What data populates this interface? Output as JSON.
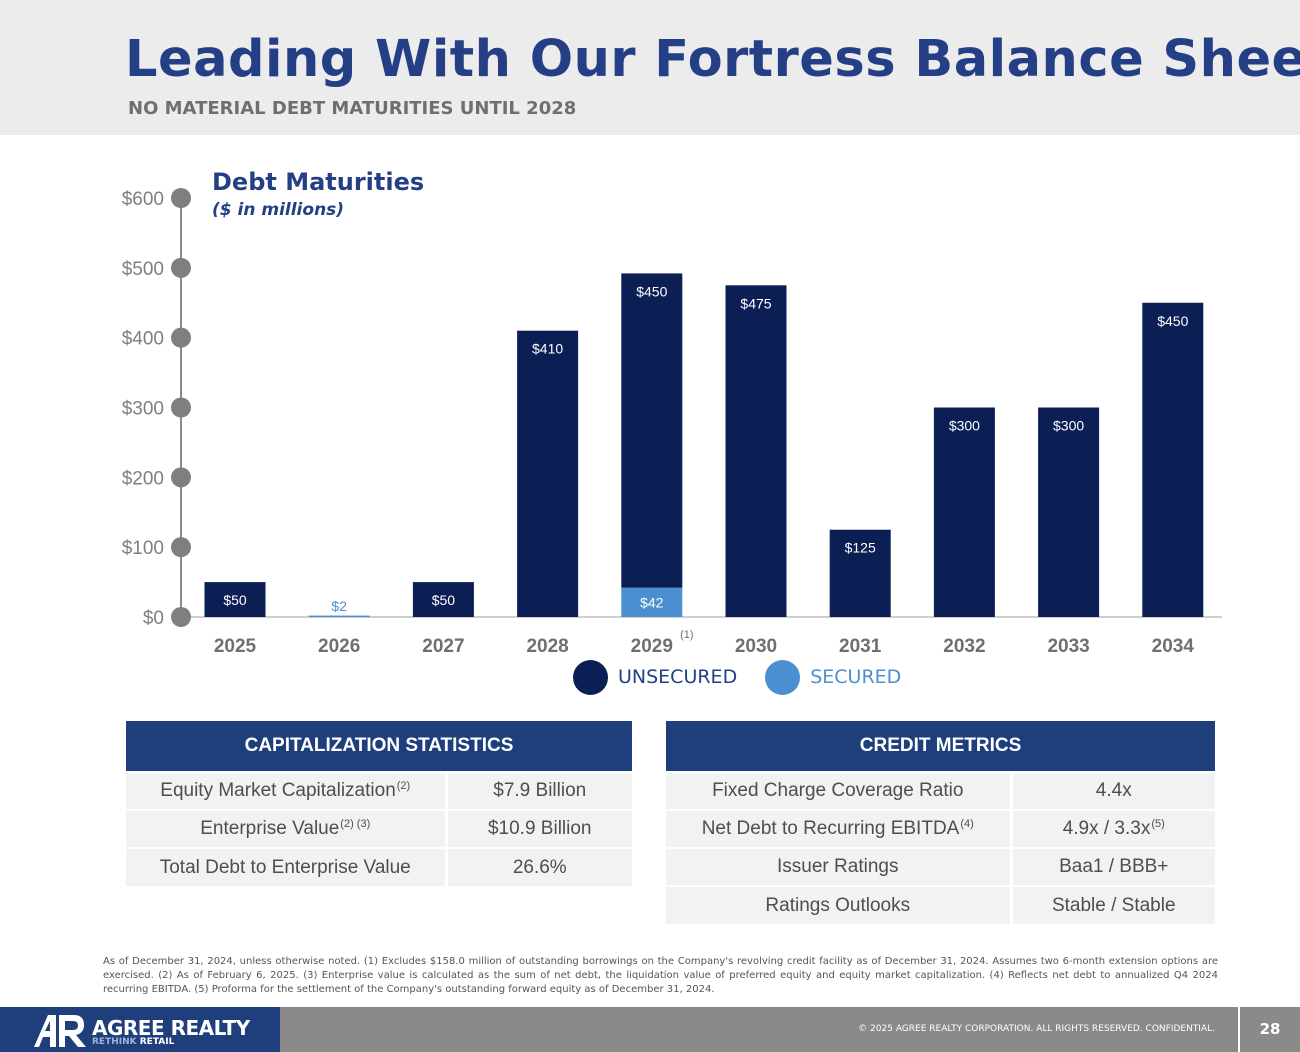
{
  "header": {
    "title": "Leading With Our Fortress Balance Sheet",
    "subtitle": "NO MATERIAL DEBT MATURITIES UNTIL 2028"
  },
  "chart_data": {
    "type": "bar",
    "stacked": true,
    "title": "Debt Maturities",
    "subtitle": "($ in millions)",
    "categories": [
      "2025",
      "2026",
      "2027",
      "2028",
      "2029",
      "2030",
      "2031",
      "2032",
      "2033",
      "2034"
    ],
    "category_notes": {
      "2029": "(1)"
    },
    "series": [
      {
        "name": "SECURED",
        "values": [
          0,
          2,
          0,
          0,
          42,
          0,
          0,
          0,
          0,
          0
        ],
        "color": "#4a90d0"
      },
      {
        "name": "UNSECURED",
        "values": [
          50,
          0,
          50,
          410,
          450,
          475,
          125,
          300,
          300,
          450
        ],
        "color": "#0c1f55"
      }
    ],
    "data_labels": {
      "UNSECURED": [
        "$50",
        "",
        "$50",
        "$410",
        "$450",
        "$475",
        "$125",
        "$300",
        "$300",
        "$450"
      ],
      "SECURED": [
        "",
        "$2",
        "",
        "",
        "$42",
        "",
        "",
        "",
        "",
        ""
      ]
    },
    "y_ticks": [
      0,
      100,
      200,
      300,
      400,
      500,
      600
    ],
    "y_tick_labels": [
      "$0",
      "$100",
      "$200",
      "$300",
      "$400",
      "$500",
      "$600"
    ],
    "ylim": [
      0,
      600
    ],
    "xlabel": "",
    "ylabel": "",
    "legend": "bottom-center",
    "grid": false
  },
  "legend": {
    "unsecured_label": "UNSECURED",
    "secured_label": "SECURED",
    "unsecured_color": "#0c1f55",
    "secured_color": "#4a90d0"
  },
  "capitalization": {
    "header": "CAPITALIZATION STATISTICS",
    "rows": [
      {
        "label": "Equity Market Capitalization",
        "note": "(2)",
        "value": "$7.9 Billion",
        "value_note": ""
      },
      {
        "label": "Enterprise Value",
        "note": "(2) (3)",
        "value": "$10.9 Billion",
        "value_note": ""
      },
      {
        "label": "Total Debt to Enterprise Value",
        "note": "",
        "value": "26.6%",
        "value_note": ""
      }
    ]
  },
  "credit": {
    "header": "CREDIT METRICS",
    "rows": [
      {
        "label": "Fixed Charge Coverage Ratio",
        "note": "",
        "value": "4.4x",
        "value_note": ""
      },
      {
        "label": "Net Debt to Recurring EBITDA",
        "note": "(4)",
        "value": "4.9x / 3.3x",
        "value_note": "(5)"
      },
      {
        "label": "Issuer Ratings",
        "note": "",
        "value": "Baa1 / BBB+",
        "value_note": ""
      },
      {
        "label": "Ratings Outlooks",
        "note": "",
        "value": "Stable / Stable",
        "value_note": ""
      }
    ]
  },
  "footnote": "As of December 31, 2024, unless otherwise noted. (1) Excludes $158.0 million of outstanding borrowings on the Company's revolving credit facility as of December 31, 2024. Assumes two 6-month extension options are exercised. (2) As of February 6, 2025. (3) Enterprise value is calculated as the sum of net debt, the liquidation value of preferred equity and equity market capitalization. (4) Reflects net debt to annualized Q4 2024 recurring EBITDA. (5) Proforma for the settlement of the Company's outstanding forward equity as of December 31, 2024.",
  "footer": {
    "logo_name": "AGREE REALTY",
    "logo_tag_a": "RETHINK",
    "logo_tag_b": " RETAIL",
    "copyright": "© 2025 AGREE REALTY CORPORATION. ALL RIGHTS RESERVED. CONFIDENTIAL.",
    "page_number": "28"
  },
  "colors": {
    "brand_navy": "#1e3f7c",
    "title_blue": "#243f86",
    "axis_gray": "#8a8a8a"
  }
}
